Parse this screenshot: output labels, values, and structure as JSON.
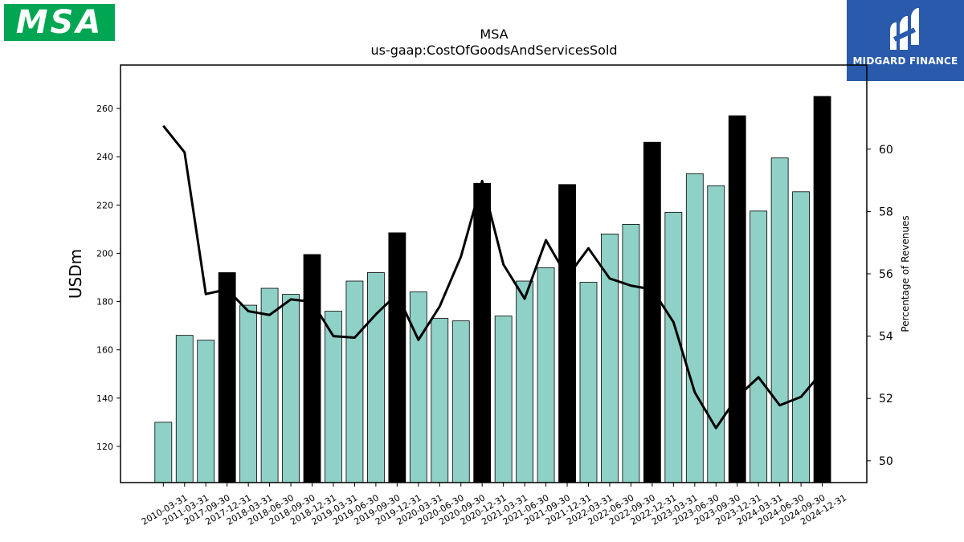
{
  "logos": {
    "left_text": "MSA",
    "right_text": "MIDGARD FINANCE",
    "left_color": "#00a651",
    "right_color": "#2a5aab"
  },
  "chart_data": {
    "type": "bar",
    "title": "MSA",
    "subtitle": "us-gaap:CostOfGoodsAndServicesSold",
    "ylabel": "USDm",
    "y2label": "Percentage of Revenues",
    "ylim": [
      105,
      278
    ],
    "y2lim": [
      49.3,
      62.7
    ],
    "yticks": [
      120,
      140,
      160,
      180,
      200,
      220,
      240,
      260
    ],
    "y2ticks": [
      50,
      52,
      54,
      56,
      58,
      60
    ],
    "grid": false,
    "categories": [
      "2010-03-31",
      "2011-03-31",
      "2017-09-30",
      "2017-12-31",
      "2018-03-31",
      "2018-06-30",
      "2018-09-30",
      "2018-12-31",
      "2019-03-31",
      "2019-06-30",
      "2019-09-30",
      "2019-12-31",
      "2020-03-31",
      "2020-06-30",
      "2020-09-30",
      "2020-12-31",
      "2021-03-31",
      "2021-06-30",
      "2021-09-30",
      "2021-12-31",
      "2022-03-31",
      "2022-06-30",
      "2022-09-30",
      "2022-12-31",
      "2023-03-31",
      "2023-06-30",
      "2023-09-30",
      "2023-12-31",
      "2024-03-31",
      "2024-06-30",
      "2024-09-30",
      "2024-12-31"
    ],
    "values": [
      130,
      166,
      164,
      192,
      178.5,
      185.5,
      183,
      199.5,
      176,
      188.5,
      192,
      208.5,
      184,
      173,
      172,
      229,
      174,
      188.5,
      194,
      228.5,
      188,
      208,
      212,
      246,
      217,
      233,
      228,
      257,
      217.5,
      239.5,
      225.5,
      265
    ],
    "highlight": [
      false,
      false,
      false,
      true,
      false,
      false,
      false,
      true,
      false,
      false,
      false,
      true,
      false,
      false,
      false,
      true,
      false,
      false,
      false,
      true,
      false,
      false,
      false,
      true,
      false,
      false,
      false,
      true,
      false,
      false,
      false,
      true
    ],
    "bar_color": "#8fd1c6",
    "highlight_color": "#000000",
    "line_series": {
      "name": "Percentage of Revenues",
      "color": "#000000",
      "values": [
        60.75,
        59.9,
        55.35,
        55.5,
        54.8,
        54.68,
        55.18,
        55.1,
        54.0,
        53.95,
        54.7,
        55.35,
        53.88,
        54.95,
        56.55,
        58.98,
        56.3,
        55.2,
        57.08,
        55.9,
        56.82,
        55.85,
        55.62,
        55.5,
        54.45,
        52.2,
        51.05,
        52.05,
        52.68,
        51.78,
        52.05,
        52.85
      ]
    }
  }
}
